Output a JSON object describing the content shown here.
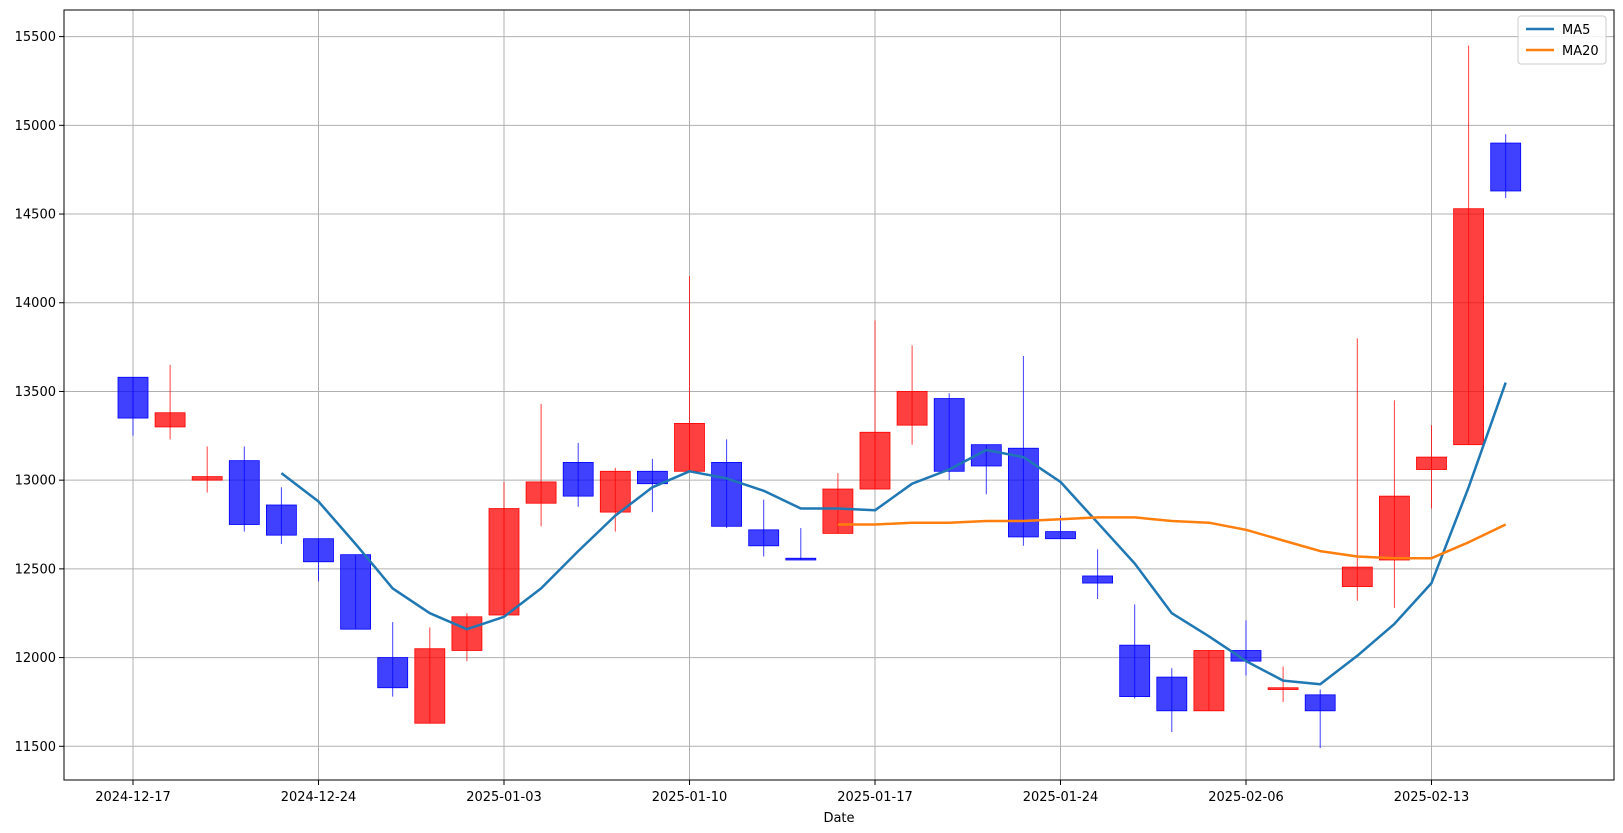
{
  "chart_data": {
    "type": "candlestick",
    "xlabel": "Date",
    "ylabel": "",
    "ylim": [
      11310,
      15650
    ],
    "grid": true,
    "legend_position": "top-right",
    "colors": {
      "up": "#ff0000",
      "down": "#0000ff",
      "ma5": "#1f77b4",
      "ma20": "#ff7f0e"
    },
    "x_ticks": [
      "2024-12-17",
      "2024-12-24",
      "2025-01-03",
      "2025-01-10",
      "2025-01-17",
      "2025-01-24",
      "2025-02-06",
      "2025-02-13"
    ],
    "y_ticks": [
      11500,
      12000,
      12500,
      13000,
      13500,
      14000,
      14500,
      15000,
      15500
    ],
    "candles": [
      {
        "date": "2024-12-17",
        "open": 13580,
        "close": 13350,
        "high": 13580,
        "low": 13250
      },
      {
        "date": "2024-12-18",
        "open": 13300,
        "close": 13380,
        "high": 13650,
        "low": 13230
      },
      {
        "date": "2024-12-19",
        "open": 13000,
        "close": 13020,
        "high": 13190,
        "low": 12930
      },
      {
        "date": "2024-12-20",
        "open": 13110,
        "close": 12750,
        "high": 13190,
        "low": 12710
      },
      {
        "date": "2024-12-23",
        "open": 12860,
        "close": 12690,
        "high": 12960,
        "low": 12640
      },
      {
        "date": "2024-12-24",
        "open": 12670,
        "close": 12540,
        "high": 12670,
        "low": 12430
      },
      {
        "date": "2024-12-25",
        "open": 12580,
        "close": 12160,
        "high": 12580,
        "low": 12160
      },
      {
        "date": "2024-12-26",
        "open": 12000,
        "close": 11830,
        "high": 12200,
        "low": 11780
      },
      {
        "date": "2024-12-27",
        "open": 11630,
        "close": 12050,
        "high": 12170,
        "low": 11630
      },
      {
        "date": "2024-12-30",
        "open": 12040,
        "close": 12230,
        "high": 12250,
        "low": 11980
      },
      {
        "date": "2025-01-03",
        "open": 12240,
        "close": 12840,
        "high": 12990,
        "low": 12240
      },
      {
        "date": "2025-01-06",
        "open": 12870,
        "close": 12990,
        "high": 13430,
        "low": 12740
      },
      {
        "date": "2025-01-07",
        "open": 13100,
        "close": 12910,
        "high": 13210,
        "low": 12850
      },
      {
        "date": "2025-01-08",
        "open": 12820,
        "close": 13050,
        "high": 13070,
        "low": 12710
      },
      {
        "date": "2025-01-09",
        "open": 13050,
        "close": 12980,
        "high": 13120,
        "low": 12820
      },
      {
        "date": "2025-01-10",
        "open": 13050,
        "close": 13320,
        "high": 14150,
        "low": 13050
      },
      {
        "date": "2025-01-13",
        "open": 13100,
        "close": 12740,
        "high": 13230,
        "low": 12730
      },
      {
        "date": "2025-01-14",
        "open": 12720,
        "close": 12630,
        "high": 12890,
        "low": 12570
      },
      {
        "date": "2025-01-15",
        "open": 12560,
        "close": 12550,
        "high": 12730,
        "low": 12550
      },
      {
        "date": "2025-01-16",
        "open": 12700,
        "close": 12950,
        "high": 13040,
        "low": 12700
      },
      {
        "date": "2025-01-17",
        "open": 12950,
        "close": 13270,
        "high": 13900,
        "low": 12950
      },
      {
        "date": "2025-01-20",
        "open": 13310,
        "close": 13500,
        "high": 13760,
        "low": 13200
      },
      {
        "date": "2025-01-21",
        "open": 13460,
        "close": 13050,
        "high": 13490,
        "low": 13000
      },
      {
        "date": "2025-01-22",
        "open": 13200,
        "close": 13080,
        "high": 13200,
        "low": 12920
      },
      {
        "date": "2025-01-23",
        "open": 13180,
        "close": 12680,
        "high": 13700,
        "low": 12630
      },
      {
        "date": "2025-01-24",
        "open": 12710,
        "close": 12670,
        "high": 12800,
        "low": 12670
      },
      {
        "date": "2025-01-27",
        "open": 12460,
        "close": 12420,
        "high": 12610,
        "low": 12330
      },
      {
        "date": "2025-01-28",
        "open": 12070,
        "close": 11780,
        "high": 12300,
        "low": 11770
      },
      {
        "date": "2025-01-29",
        "open": 11890,
        "close": 11700,
        "high": 11940,
        "low": 11580
      },
      {
        "date": "2025-01-30",
        "open": 11700,
        "close": 12040,
        "high": 12040,
        "low": 11700
      },
      {
        "date": "2025-02-06",
        "open": 12040,
        "close": 11980,
        "high": 12210,
        "low": 11900
      },
      {
        "date": "2025-02-07",
        "open": 11820,
        "close": 11830,
        "high": 11950,
        "low": 11750
      },
      {
        "date": "2025-02-10",
        "open": 11790,
        "close": 11700,
        "high": 11820,
        "low": 11490
      },
      {
        "date": "2025-02-11",
        "open": 12400,
        "close": 12510,
        "high": 13800,
        "low": 12320
      },
      {
        "date": "2025-02-12",
        "open": 12550,
        "close": 12910,
        "high": 13450,
        "low": 12280
      },
      {
        "date": "2025-02-13",
        "open": 13060,
        "close": 13130,
        "high": 13310,
        "low": 12840
      },
      {
        "date": "2025-02-14",
        "open": 13200,
        "close": 14530,
        "high": 15450,
        "low": 13200
      },
      {
        "date": "2025-02-17",
        "open": 14900,
        "close": 14630,
        "high": 14950,
        "low": 14590
      }
    ],
    "series": [
      {
        "name": "MA5",
        "start_index": 4,
        "values": [
          13040,
          12880,
          12640,
          12390,
          12250,
          12160,
          12230,
          12390,
          12600,
          12800,
          12960,
          13050,
          13010,
          12940,
          12840,
          12840,
          12830,
          12980,
          13060,
          13170,
          13130,
          12990,
          12760,
          12530,
          12250,
          12120,
          11980,
          11870,
          11850,
          12010,
          12190,
          12420,
          12960,
          13550
        ]
      },
      {
        "name": "MA20",
        "start_index": 19,
        "values": [
          12750,
          12750,
          12760,
          12760,
          12770,
          12770,
          12780,
          12790,
          12790,
          12770,
          12760,
          12720,
          12660,
          12600,
          12570,
          12560,
          12560,
          12650,
          12750
        ]
      }
    ]
  }
}
